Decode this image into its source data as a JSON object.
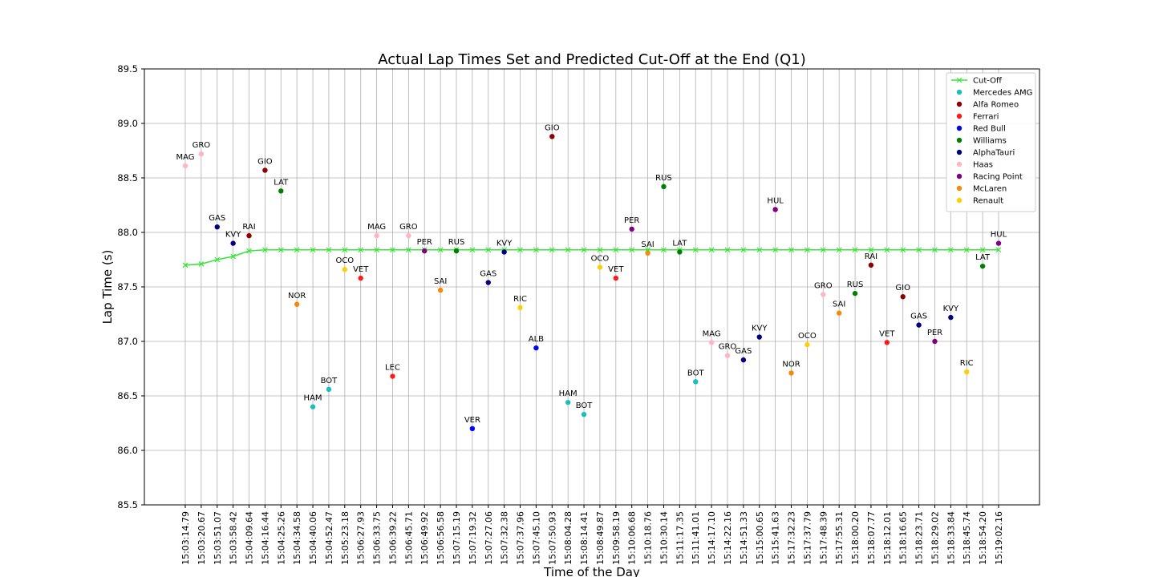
{
  "chart_data": {
    "type": "scatter",
    "title": "Actual Lap Times Set and Predicted Cut-Off at the End (Q1)",
    "xlabel": "Time of the Day",
    "ylabel": "Lap Time (s)",
    "ylim": [
      85.5,
      89.5
    ],
    "yticks": [
      "85.5",
      "86.0",
      "86.5",
      "87.0",
      "87.5",
      "88.0",
      "88.5",
      "89.0",
      "89.5"
    ],
    "grid": true,
    "legend_position": "top-right",
    "categories": [
      "15:03:14.79",
      "15:03:20.67",
      "15:03:51.07",
      "15:03:58.42",
      "15:04:09.64",
      "15:04:16.44",
      "15:04:25.26",
      "15:04:34.58",
      "15:04:40.06",
      "15:04:52.47",
      "15:05:23.18",
      "15:06:27.93",
      "15:06:33.75",
      "15:06:39.22",
      "15:06:45.71",
      "15:06:49.92",
      "15:06:56.58",
      "15:07:15.19",
      "15:07:19.32",
      "15:07:27.06",
      "15:07:32.38",
      "15:07:37.96",
      "15:07:45.10",
      "15:07:50.93",
      "15:08:04.28",
      "15:08:14.41",
      "15:08:49.87",
      "15:09:58.19",
      "15:10:06.68",
      "15:10:18.76",
      "15:10:30.14",
      "15:11:17.35",
      "15:11:41.01",
      "15:14:17.10",
      "15:14:22.16",
      "15:14:51.33",
      "15:15:00.65",
      "15:15:41.63",
      "15:17:32.23",
      "15:17:37.79",
      "15:17:48.39",
      "15:17:55.31",
      "15:18:00.20",
      "15:18:07.77",
      "15:18:12.01",
      "15:18:16.65",
      "15:18:23.71",
      "15:18:29.02",
      "15:18:33.84",
      "15:18:45.74",
      "15:18:54.20",
      "15:19:02.16"
    ],
    "cutoff": {
      "name": "Cut-Off",
      "color": "#39e639",
      "values": [
        87.7,
        87.71,
        87.75,
        87.78,
        87.83,
        87.84,
        87.84,
        87.84,
        87.84,
        87.84,
        87.84,
        87.84,
        87.84,
        87.84,
        87.84,
        87.84,
        87.84,
        87.84,
        87.84,
        87.84,
        87.84,
        87.84,
        87.84,
        87.84,
        87.84,
        87.84,
        87.84,
        87.84,
        87.84,
        87.84,
        87.84,
        87.84,
        87.84,
        87.84,
        87.84,
        87.84,
        87.84,
        87.84,
        87.84,
        87.84,
        87.84,
        87.84,
        87.84,
        87.84,
        87.84,
        87.84,
        87.84,
        87.84,
        87.84,
        87.84,
        87.84,
        87.84
      ]
    },
    "teams": [
      {
        "name": "Mercedes AMG",
        "color": "#1abfbf"
      },
      {
        "name": "Alfa Romeo",
        "color": "#8b0000"
      },
      {
        "name": "Ferrari",
        "color": "#ff1a1a"
      },
      {
        "name": "Red Bull",
        "color": "#0000ff"
      },
      {
        "name": "Williams",
        "color": "#008000"
      },
      {
        "name": "AlphaTauri",
        "color": "#000080"
      },
      {
        "name": "Haas",
        "color": "#ffb6c1"
      },
      {
        "name": "Racing Point",
        "color": "#800080"
      },
      {
        "name": "McLaren",
        "color": "#f58a0a"
      },
      {
        "name": "Renault",
        "color": "#ffd000"
      }
    ],
    "points": [
      {
        "driver": "MAG",
        "team": "Haas",
        "lap": 88.61
      },
      {
        "driver": "GRO",
        "team": "Haas",
        "lap": 88.72
      },
      {
        "driver": "GAS",
        "team": "AlphaTauri",
        "lap": 88.05
      },
      {
        "driver": "KVY",
        "team": "AlphaTauri",
        "lap": 87.9
      },
      {
        "driver": "RAI",
        "team": "Alfa Romeo",
        "lap": 87.97
      },
      {
        "driver": "GIO",
        "team": "Alfa Romeo",
        "lap": 88.57
      },
      {
        "driver": "LAT",
        "team": "Williams",
        "lap": 88.38
      },
      {
        "driver": "NOR",
        "team": "McLaren",
        "lap": 87.34
      },
      {
        "driver": "HAM",
        "team": "Mercedes AMG",
        "lap": 86.4
      },
      {
        "driver": "BOT",
        "team": "Mercedes AMG",
        "lap": 86.56
      },
      {
        "driver": "OCO",
        "team": "Renault",
        "lap": 87.66
      },
      {
        "driver": "VET",
        "team": "Ferrari",
        "lap": 87.58
      },
      {
        "driver": "MAG",
        "team": "Haas",
        "lap": 87.97
      },
      {
        "driver": "LEC",
        "team": "Ferrari",
        "lap": 86.68
      },
      {
        "driver": "GRO",
        "team": "Haas",
        "lap": 87.97
      },
      {
        "driver": "PER",
        "team": "Racing Point",
        "lap": 87.83
      },
      {
        "driver": "SAI",
        "team": "McLaren",
        "lap": 87.47
      },
      {
        "driver": "RUS",
        "team": "Williams",
        "lap": 87.83
      },
      {
        "driver": "VER",
        "team": "Red Bull",
        "lap": 86.2
      },
      {
        "driver": "GAS",
        "team": "AlphaTauri",
        "lap": 87.54
      },
      {
        "driver": "KVY",
        "team": "AlphaTauri",
        "lap": 87.82
      },
      {
        "driver": "RIC",
        "team": "Renault",
        "lap": 87.31
      },
      {
        "driver": "ALB",
        "team": "Red Bull",
        "lap": 86.94
      },
      {
        "driver": "GIO",
        "team": "Alfa Romeo",
        "lap": 88.88
      },
      {
        "driver": "HAM",
        "team": "Mercedes AMG",
        "lap": 86.44
      },
      {
        "driver": "BOT",
        "team": "Mercedes AMG",
        "lap": 86.33
      },
      {
        "driver": "OCO",
        "team": "Renault",
        "lap": 87.68
      },
      {
        "driver": "VET",
        "team": "Ferrari",
        "lap": 87.58
      },
      {
        "driver": "PER",
        "team": "Racing Point",
        "lap": 88.03
      },
      {
        "driver": "SAI",
        "team": "McLaren",
        "lap": 87.81
      },
      {
        "driver": "RUS",
        "team": "Williams",
        "lap": 88.42
      },
      {
        "driver": "LAT",
        "team": "Williams",
        "lap": 87.82
      },
      {
        "driver": "BOT",
        "team": "Mercedes AMG",
        "lap": 86.63
      },
      {
        "driver": "MAG",
        "team": "Haas",
        "lap": 86.99
      },
      {
        "driver": "GRO",
        "team": "Haas",
        "lap": 86.87
      },
      {
        "driver": "GAS",
        "team": "AlphaTauri",
        "lap": 86.83
      },
      {
        "driver": "KVY",
        "team": "AlphaTauri",
        "lap": 87.04
      },
      {
        "driver": "HUL",
        "team": "Racing Point",
        "lap": 88.21
      },
      {
        "driver": "NOR",
        "team": "McLaren",
        "lap": 86.71
      },
      {
        "driver": "OCO",
        "team": "Renault",
        "lap": 86.97
      },
      {
        "driver": "GRO",
        "team": "Haas",
        "lap": 87.43
      },
      {
        "driver": "SAI",
        "team": "McLaren",
        "lap": 87.26
      },
      {
        "driver": "RUS",
        "team": "Williams",
        "lap": 87.44
      },
      {
        "driver": "RAI",
        "team": "Alfa Romeo",
        "lap": 87.7
      },
      {
        "driver": "VET",
        "team": "Ferrari",
        "lap": 86.99
      },
      {
        "driver": "GIO",
        "team": "Alfa Romeo",
        "lap": 87.41
      },
      {
        "driver": "GAS",
        "team": "AlphaTauri",
        "lap": 87.15
      },
      {
        "driver": "PER",
        "team": "Racing Point",
        "lap": 87.0
      },
      {
        "driver": "KVY",
        "team": "AlphaTauri",
        "lap": 87.22
      },
      {
        "driver": "RIC",
        "team": "Renault",
        "lap": 86.72
      },
      {
        "driver": "LAT",
        "team": "Williams",
        "lap": 87.69
      },
      {
        "driver": "HUL",
        "team": "Racing Point",
        "lap": 87.9
      }
    ]
  }
}
